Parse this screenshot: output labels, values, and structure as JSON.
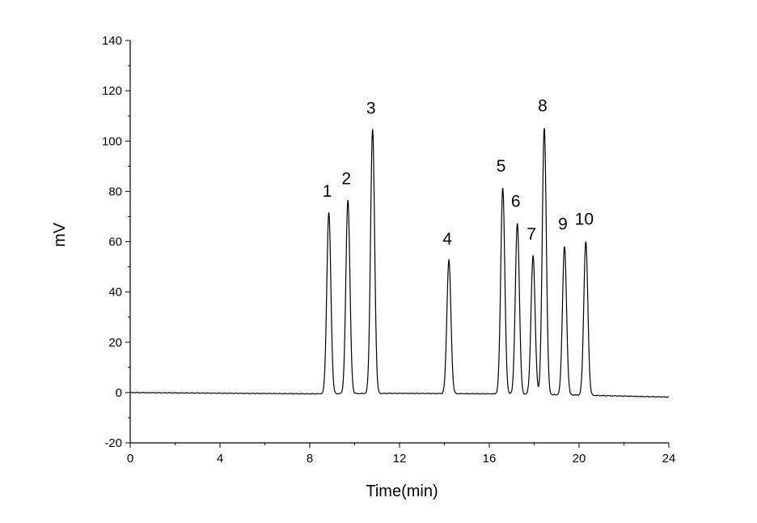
{
  "chart_data": {
    "type": "line",
    "title": "",
    "xlabel": "Time(min)",
    "ylabel": "mV",
    "xlim": [
      0,
      24
    ],
    "ylim": [
      -20,
      140
    ],
    "x_ticks": [
      0,
      4,
      8,
      12,
      16,
      20,
      24
    ],
    "y_ticks": [
      -20,
      0,
      20,
      40,
      60,
      80,
      100,
      120,
      140
    ],
    "grid": false,
    "legend": "none",
    "line_color": "#000000",
    "baseline_points": [
      {
        "x": 0,
        "y": 0
      },
      {
        "x": 8,
        "y": -0.5
      },
      {
        "x": 12,
        "y": -0.3
      },
      {
        "x": 16,
        "y": -0.5
      },
      {
        "x": 20,
        "y": -1.0
      },
      {
        "x": 24,
        "y": -1.8
      }
    ],
    "peaks": [
      {
        "label": "1",
        "time": 8.85,
        "height": 72
      },
      {
        "label": "2",
        "time": 9.7,
        "height": 77
      },
      {
        "label": "3",
        "time": 10.8,
        "height": 105
      },
      {
        "label": "4",
        "time": 14.2,
        "height": 53
      },
      {
        "label": "5",
        "time": 16.6,
        "height": 82
      },
      {
        "label": "6",
        "time": 17.25,
        "height": 68
      },
      {
        "label": "7",
        "time": 17.95,
        "height": 55
      },
      {
        "label": "8",
        "time": 18.45,
        "height": 106
      },
      {
        "label": "9",
        "time": 19.35,
        "height": 59
      },
      {
        "label": "10",
        "time": 20.3,
        "height": 61
      }
    ]
  }
}
